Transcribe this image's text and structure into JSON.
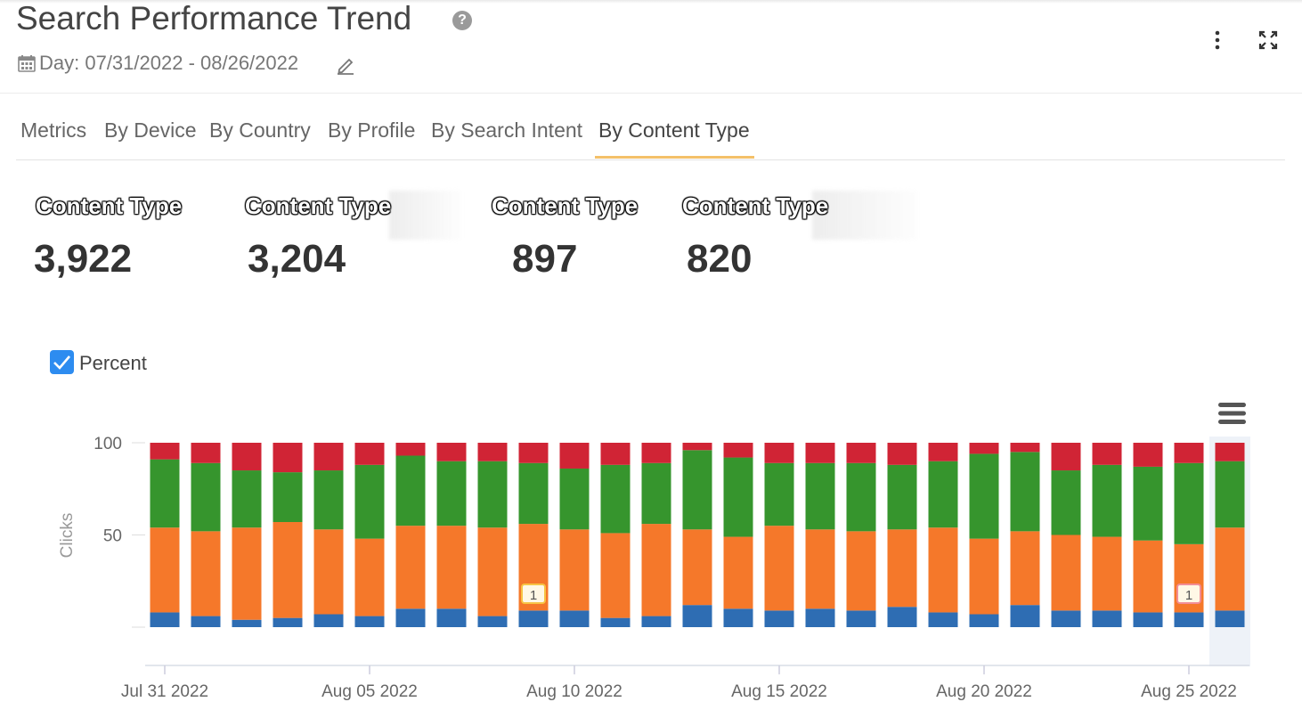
{
  "header": {
    "title": "Search Performance Trend",
    "help_icon": "question-circle-icon",
    "date_range": "Day: 07/31/2022 - 08/26/2022",
    "calendar_icon": "calendar-icon",
    "edit_icon": "pencil-icon",
    "menu_icon": "vertical-dots-icon",
    "expand_icon": "expand-arrows-icon"
  },
  "tabs": [
    {
      "label": "Metrics",
      "active": false
    },
    {
      "label": "By Device",
      "active": false
    },
    {
      "label": "By Country",
      "active": false
    },
    {
      "label": "By Profile",
      "active": false
    },
    {
      "label": "By Search Intent",
      "active": false
    },
    {
      "label": "By Content Type",
      "active": true
    }
  ],
  "kpis": [
    {
      "label": "Content Type",
      "value": "3,922"
    },
    {
      "label": "Content Type",
      "value": "3,204"
    },
    {
      "label": "Content Type",
      "value": "897"
    },
    {
      "label": "Content Type",
      "value": "820"
    }
  ],
  "percent_toggle": {
    "label": "Percent",
    "checked": true
  },
  "colors": {
    "blue": "#2e6db3",
    "orange": "#f5782a",
    "green": "#36952d",
    "red": "#d02435",
    "accent": "#f4c069",
    "checkbox": "#2d8cf0"
  },
  "chart_data": {
    "type": "bar",
    "stacked": true,
    "percent": true,
    "ylabel": "Clicks",
    "ylim": [
      0,
      100
    ],
    "yticks": [
      "50",
      "100"
    ],
    "xticks": [
      "Jul 31 2022",
      "Aug 05 2022",
      "Aug 10 2022",
      "Aug 15 2022",
      "Aug 20 2022",
      "Aug 25 2022"
    ],
    "categories": [
      "Jul 31 2022",
      "Aug 01 2022",
      "Aug 02 2022",
      "Aug 03 2022",
      "Aug 04 2022",
      "Aug 05 2022",
      "Aug 06 2022",
      "Aug 07 2022",
      "Aug 08 2022",
      "Aug 09 2022",
      "Aug 10 2022",
      "Aug 11 2022",
      "Aug 12 2022",
      "Aug 13 2022",
      "Aug 14 2022",
      "Aug 15 2022",
      "Aug 16 2022",
      "Aug 17 2022",
      "Aug 18 2022",
      "Aug 19 2022",
      "Aug 20 2022",
      "Aug 21 2022",
      "Aug 22 2022",
      "Aug 23 2022",
      "Aug 24 2022",
      "Aug 25 2022",
      "Aug 26 2022"
    ],
    "series": [
      {
        "color": "#2e6db3",
        "values": [
          8,
          6,
          4,
          5,
          7,
          6,
          10,
          10,
          6,
          9,
          9,
          5,
          6,
          12,
          10,
          9,
          10,
          9,
          11,
          8,
          7,
          12,
          9,
          9,
          8,
          8,
          9
        ]
      },
      {
        "color": "#f5782a",
        "values": [
          46,
          46,
          50,
          52,
          46,
          42,
          45,
          45,
          48,
          47,
          44,
          46,
          50,
          41,
          39,
          46,
          43,
          43,
          42,
          46,
          41,
          40,
          41,
          40,
          39,
          37,
          45
        ]
      },
      {
        "color": "#36952d",
        "values": [
          37,
          37,
          31,
          27,
          32,
          40,
          38,
          35,
          36,
          33,
          33,
          37,
          33,
          43,
          43,
          34,
          36,
          37,
          35,
          36,
          46,
          43,
          35,
          39,
          40,
          44,
          36
        ]
      },
      {
        "color": "#d02435",
        "values": [
          9,
          11,
          15,
          16,
          15,
          12,
          7,
          10,
          10,
          11,
          14,
          12,
          11,
          4,
          8,
          11,
          11,
          11,
          12,
          10,
          6,
          5,
          15,
          12,
          13,
          11,
          10
        ]
      }
    ],
    "annotations": [
      {
        "category": "Aug 09 2022",
        "text": "1",
        "color": "#f7c444"
      },
      {
        "category": "Aug 25 2022",
        "text": "1",
        "color": "#f28d96"
      }
    ]
  }
}
